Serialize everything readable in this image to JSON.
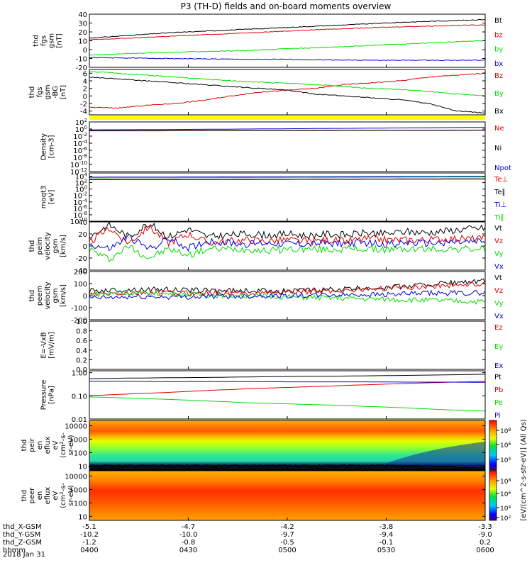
{
  "title": "P3 (TH-D) fields and on-board moments overview",
  "date_label": "2018 Jan 31",
  "colorbar_label": "[eV/(cm^2-s-str-eV)] (All Qs)",
  "colorbar_ticks": [
    "10^8",
    "10^6",
    "10^4",
    "10^2"
  ],
  "colors": {
    "black": "#000000",
    "red": "#e00000",
    "green": "#00dd00",
    "blue": "#0000dd",
    "yellow": "#ffff00"
  },
  "chart_data": [
    {
      "type": "line",
      "panel": "fgs",
      "ylabel": [
        "thd",
        "fgs",
        "gsm",
        "[nT]"
      ],
      "ylim": [
        -20,
        40
      ],
      "yticks": [
        -20,
        -10,
        0,
        10,
        20,
        30,
        40
      ],
      "series": [
        {
          "name": "Bt",
          "color": "#000000",
          "values": [
            13,
            16,
            19,
            21,
            23,
            25,
            27,
            29,
            31,
            32.5,
            34
          ]
        },
        {
          "name": "bz",
          "color": "#e00000",
          "values": [
            11,
            13,
            15,
            17,
            19,
            21,
            23,
            24.5,
            26,
            27,
            28
          ]
        },
        {
          "name": "by",
          "color": "#00dd00",
          "values": [
            -6,
            -4.5,
            -3,
            -2,
            -1,
            1,
            2.5,
            4.5,
            6.5,
            8.5,
            10
          ]
        },
        {
          "name": "bx",
          "color": "#0000dd",
          "values": [
            -9,
            -9.5,
            -10,
            -10.5,
            -11,
            -11,
            -11.5,
            -12,
            -12,
            -12,
            -12
          ]
        }
      ]
    },
    {
      "type": "line",
      "panel": "fgs-gsm",
      "ylabel": [
        "thd",
        "fgs",
        "gsm",
        "-BG",
        "[nT]"
      ],
      "ylim": [
        -5,
        7
      ],
      "yticks": [
        -4,
        -2,
        0,
        2,
        4,
        6
      ],
      "series": [
        {
          "name": "Bz",
          "color": "#e00000",
          "values": [
            -3,
            -3.2,
            -2.5,
            -2,
            -1.2,
            0,
            1,
            1.5,
            2,
            3,
            3.5,
            4,
            5,
            5.5,
            6
          ]
        },
        {
          "name": "By",
          "color": "#00dd00",
          "values": [
            6.5,
            6,
            5.5,
            5,
            4.5,
            4,
            3.7,
            3.3,
            3,
            2.5,
            2,
            1.7,
            1.2,
            0.5,
            0
          ]
        },
        {
          "name": "Bx",
          "color": "#000000",
          "values": [
            5,
            4.5,
            4,
            3.5,
            3,
            2.5,
            2,
            1.5,
            0.5,
            0,
            -0.5,
            -1,
            -2,
            -4,
            -4.5
          ]
        }
      ]
    },
    {
      "type": "line",
      "panel": "density",
      "scale": "log",
      "ylabel": [
        "Density",
        "[cm-3]"
      ],
      "ylim": [
        1e-12,
        100
      ],
      "ytick_labels": [
        "10^2",
        "10^0",
        "10^-2",
        "10^-4",
        "10^-6",
        "10^-8",
        "10^-10",
        "10^-12"
      ],
      "series": [
        {
          "name": "Ne",
          "color": "#e00000",
          "values": [
            0.3,
            0.3,
            0.35,
            0.35,
            0.4,
            0.4,
            0.45
          ]
        },
        {
          "name": "Ni",
          "color": "#000000",
          "values": [
            0.35,
            0.35,
            0.4,
            0.4,
            0.45,
            0.45,
            0.5
          ]
        },
        {
          "name": "Npot",
          "color": "#0000dd",
          "values": [
            0.6,
            0.7,
            0.9,
            1.2,
            1.6,
            2.2,
            3
          ]
        }
      ]
    },
    {
      "type": "line",
      "panel": "temperature",
      "scale": "log",
      "ylabel": [
        "moqt3",
        "[eV]"
      ],
      "ylim": [
        1e-10,
        100000
      ],
      "ytick_labels": [
        "10^4",
        "10^2",
        "10^0",
        "10^-2",
        "10^-4",
        "10^-6",
        "10^-8",
        "10^-10"
      ],
      "series": [
        {
          "name": "Te⊥",
          "color": "#e00000",
          "values": [
            800,
            850,
            900,
            1000,
            1100,
            1200,
            1300
          ]
        },
        {
          "name": "Te∥",
          "color": "#000000",
          "values": [
            1000,
            1050,
            1100,
            1200,
            1300,
            1400,
            1500
          ]
        },
        {
          "name": "Ti⊥",
          "color": "#0000dd",
          "values": [
            5000,
            5500,
            6000,
            7000,
            8000,
            9000,
            10000
          ]
        },
        {
          "name": "Ti∥",
          "color": "#00dd00",
          "values": [
            3000,
            3300,
            3600,
            4000,
            4500,
            5000,
            5500
          ]
        }
      ]
    },
    {
      "type": "line",
      "panel": "peim-velocity",
      "ylabel": [
        "thd",
        "peim",
        "velocity",
        "gsm",
        "[km/s]"
      ],
      "ylim": [
        -40,
        40
      ],
      "yticks": [
        -40,
        -20,
        0,
        20,
        40
      ],
      "series": [
        {
          "name": "Vt",
          "color": "#000000",
          "values": [
            15,
            35,
            15,
            38,
            15,
            28,
            15,
            18,
            20,
            18,
            20,
            17,
            20,
            18,
            22,
            20,
            24,
            22,
            25,
            28,
            30
          ]
        },
        {
          "name": "Vz",
          "color": "#e00000",
          "values": [
            5,
            30,
            5,
            32,
            5,
            20,
            5,
            8,
            10,
            8,
            10,
            7,
            10,
            8,
            12,
            10,
            10,
            10,
            12,
            12,
            12
          ]
        },
        {
          "name": "Vy",
          "color": "#00dd00",
          "values": [
            -5,
            -22,
            0,
            -20,
            -5,
            -15,
            -5,
            -5,
            -5,
            -8,
            -5,
            -5,
            -6,
            -5,
            -5,
            -6,
            -5,
            -5,
            -5,
            -5,
            -5
          ]
        },
        {
          "name": "Vx",
          "color": "#0000dd",
          "values": [
            3,
            -5,
            15,
            -5,
            12,
            -3,
            8,
            5,
            3,
            5,
            4,
            3,
            5,
            4,
            5,
            3,
            5,
            4,
            6,
            6,
            7
          ]
        }
      ]
    },
    {
      "type": "line",
      "panel": "peem-velocity",
      "ylabel": [
        "thd",
        "peem",
        "velocity",
        "gsm",
        "[km/s]"
      ],
      "ylim": [
        -200,
        200
      ],
      "yticks": [
        -200,
        -100,
        0,
        100,
        200
      ],
      "series": [
        {
          "name": "Vt",
          "color": "#000000",
          "values": [
            40,
            45,
            50,
            50,
            45,
            45,
            40,
            40,
            40,
            45,
            50,
            60,
            70,
            80,
            100,
            110,
            120
          ]
        },
        {
          "name": "Vz",
          "color": "#e00000",
          "values": [
            10,
            15,
            20,
            25,
            20,
            25,
            20,
            25,
            30,
            35,
            40,
            50,
            60,
            70,
            80,
            90,
            100
          ]
        },
        {
          "name": "Vy",
          "color": "#00dd00",
          "values": [
            10,
            20,
            20,
            15,
            10,
            5,
            0,
            -5,
            -10,
            -15,
            -20,
            -25,
            -30,
            -35,
            -40,
            -45,
            -50
          ]
        },
        {
          "name": "Vx",
          "color": "#0000dd",
          "values": [
            -20,
            -15,
            -10,
            -10,
            -10,
            -5,
            -5,
            0,
            0,
            0,
            5,
            10,
            10,
            15,
            20,
            20,
            25
          ]
        }
      ]
    },
    {
      "type": "line",
      "panel": "efield",
      "ylabel": [
        "E=-VxB",
        "[mV/m]"
      ],
      "ylim": [
        0,
        1
      ],
      "yticks": [
        0,
        0.2,
        0.4,
        0.6,
        0.8,
        1.0
      ],
      "ytick_labels": [
        "0.0",
        "0.2",
        "0.4",
        "0.6",
        "0.8",
        "1.0"
      ],
      "series": [
        {
          "name": "Ez",
          "color": "#e00000",
          "values": []
        },
        {
          "name": "Ey",
          "color": "#00dd00",
          "values": []
        },
        {
          "name": "Ex",
          "color": "#0000dd",
          "values": []
        }
      ]
    },
    {
      "type": "line",
      "panel": "pressure",
      "scale": "log",
      "ylabel": [
        "Pressure",
        "[nPa]"
      ],
      "ylim": [
        0.01,
        1.2
      ],
      "ytick_values": [
        0.01,
        0.1,
        1
      ],
      "ytick_labels": [
        "0.01",
        "0.10",
        "1.00"
      ],
      "series": [
        {
          "name": "Pt",
          "color": "#000000",
          "values": [
            0.55,
            0.58,
            0.6,
            0.62,
            0.65,
            0.68,
            0.7,
            0.73,
            0.76,
            0.8,
            0.85
          ]
        },
        {
          "name": "Pb",
          "color": "#e00000",
          "values": [
            0.1,
            0.12,
            0.14,
            0.17,
            0.2,
            0.23,
            0.26,
            0.3,
            0.34,
            0.38,
            0.42
          ]
        },
        {
          "name": "Pe",
          "color": "#00dd00",
          "values": [
            0.09,
            0.08,
            0.07,
            0.06,
            0.05,
            0.045,
            0.04,
            0.035,
            0.03,
            0.025,
            0.022
          ]
        },
        {
          "name": "Pi",
          "color": "#0000dd",
          "values": [
            0.42,
            0.42,
            0.41,
            0.41,
            0.41,
            0.4,
            0.4,
            0.4,
            0.39,
            0.39,
            0.38
          ]
        }
      ]
    },
    {
      "type": "heatmap",
      "panel": "peir-energy",
      "ylabel": [
        "thd",
        "peir",
        "en",
        "eflux",
        "eV",
        "(cm^2-s-",
        "sr-eV)"
      ],
      "scale": "log",
      "ylim": [
        5,
        25000
      ],
      "ytick_values": [
        10,
        100,
        1000,
        10000
      ],
      "ytick_labels": [
        "10",
        "100",
        "1000",
        "10000"
      ]
    },
    {
      "type": "heatmap",
      "panel": "peer-energy",
      "ylabel": [
        "thd",
        "peer",
        "en",
        "eflux",
        "eV",
        "(cm^2-s-",
        "sr-eV)"
      ],
      "scale": "log",
      "ylim": [
        5,
        25000
      ],
      "ytick_values": [
        10,
        100,
        1000,
        10000
      ],
      "ytick_labels": [
        "10",
        "100",
        "1000",
        "10000"
      ]
    }
  ],
  "x_axis": {
    "rows": [
      {
        "label": "thd_X-GSM",
        "values": [
          "-5.1",
          "-4.7",
          "-4.2",
          "-3.8",
          "-3.3"
        ]
      },
      {
        "label": "thd_Y-GSM",
        "values": [
          "-10.2",
          "-10.0",
          "-9.7",
          "-9.4",
          "-9.0"
        ]
      },
      {
        "label": "thd_Z-GSM",
        "values": [
          "-1.2",
          "-0.8",
          "-0.5",
          "-0.1",
          "0.2"
        ]
      },
      {
        "label": "hhmm",
        "values": [
          "0400",
          "0430",
          "0500",
          "0530",
          "0600"
        ]
      }
    ]
  }
}
